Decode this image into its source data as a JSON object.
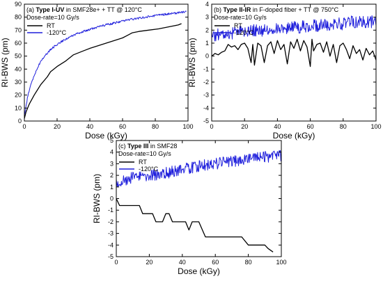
{
  "colors": {
    "rt": "#000000",
    "cold": "#1f1fdc",
    "axis": "#000000"
  },
  "chart_data": [
    {
      "type": "line",
      "panel_tag": "(a)",
      "title_bold": "Type I-UV",
      "title_rest": " in SMF28e+ + TT @ 120°C",
      "subtitle": "Dose-rate=10 Gy/s",
      "xlabel": "Dose (kGy)",
      "ylabel": "RI-BWS (pm)",
      "xlim": [
        0,
        100
      ],
      "ylim": [
        0,
        90
      ],
      "xticks": [
        0,
        20,
        40,
        60,
        80,
        100
      ],
      "yticks": [
        0,
        10,
        20,
        30,
        40,
        50,
        60,
        70,
        80,
        90
      ],
      "legend_position": "upper-left",
      "series": [
        {
          "name": "RT",
          "color": "#000000",
          "noise": 0,
          "x": [
            0,
            1,
            3,
            6,
            10,
            14,
            16,
            17,
            20,
            25,
            30,
            36,
            40,
            45,
            50,
            55,
            60,
            63,
            66,
            70,
            76,
            82,
            86,
            90,
            94,
            96
          ],
          "y": [
            2,
            7,
            13,
            20,
            28,
            34,
            38,
            39,
            42,
            46,
            51,
            54,
            56,
            58,
            60,
            62,
            64,
            66,
            68,
            69,
            70,
            71,
            72,
            73,
            74,
            75
          ]
        },
        {
          "name": "-120°C",
          "color": "#1f1fdc",
          "noise": 0.6,
          "x": [
            0,
            1,
            2,
            4,
            6,
            8,
            10,
            13,
            16,
            20,
            25,
            30,
            35,
            40,
            45,
            50,
            55,
            60,
            65,
            70,
            75,
            80,
            85,
            90,
            95,
            99
          ],
          "y": [
            4,
            11,
            19,
            28,
            35,
            41,
            46,
            51,
            55,
            59,
            63,
            66,
            68.5,
            70.5,
            72.5,
            74,
            75.5,
            77,
            78.3,
            79.3,
            80.3,
            81.2,
            82,
            82.8,
            83.5,
            84
          ]
        }
      ]
    },
    {
      "type": "line",
      "panel_tag": "(b)",
      "title_bold": "Type II-IR",
      "title_rest": " in F-doped fiber + TT @ 750°C",
      "subtitle": "Dose-rate=10 Gy/s",
      "xlabel": "Dose (kGy)",
      "ylabel": "RI-BWS (pm)",
      "xlim": [
        0,
        100
      ],
      "ylim": [
        -5,
        4
      ],
      "xticks": [
        0,
        20,
        40,
        60,
        80,
        100
      ],
      "yticks": [
        -5,
        -4,
        -3,
        -2,
        -1,
        0,
        1,
        2,
        3,
        4
      ],
      "legend_position": "upper-left",
      "series": [
        {
          "name": "RT",
          "color": "#000000",
          "noise": 0,
          "x": [
            0,
            2,
            4,
            6,
            8,
            10,
            12,
            14,
            16,
            18,
            20,
            22,
            24,
            25,
            26,
            28,
            30,
            32,
            34,
            36,
            38,
            40,
            42,
            44,
            46,
            48,
            50,
            52,
            54,
            56,
            58,
            60,
            61,
            62,
            64,
            66,
            68,
            70,
            72,
            74,
            76,
            78,
            80,
            82,
            84,
            86,
            88,
            90,
            92,
            94,
            96,
            98,
            100
          ],
          "y": [
            0,
            0.2,
            0.1,
            0.3,
            0.4,
            0.9,
            0.7,
            0.8,
            0.5,
            0.9,
            1.0,
            0.6,
            -0.5,
            0.9,
            -0.7,
            1.0,
            0.8,
            -0.5,
            0.8,
            1.1,
            0.2,
            1.2,
            0.5,
            0.9,
            -0.6,
            1.1,
            0.6,
            1.3,
            0.4,
            1.2,
            0.7,
            -0.8,
            1.3,
            0.4,
            0.9,
            1.0,
            0.3,
            1.1,
            0.0,
            0.9,
            -0.5,
            0.8,
            1.0,
            0.5,
            -0.2,
            0.8,
            0.2,
            0.5,
            -0.3,
            0.6,
            0.1,
            0.4,
            -0.3
          ]
        },
        {
          "name": "-120°C",
          "color": "#1f1fdc",
          "noise": 0.55,
          "x": [
            0,
            10,
            20,
            30,
            40,
            50,
            60,
            70,
            80,
            90,
            100
          ],
          "y": [
            1.6,
            1.7,
            1.9,
            2.0,
            2.1,
            2.2,
            2.3,
            2.4,
            2.5,
            2.7,
            2.6
          ]
        }
      ]
    },
    {
      "type": "line",
      "panel_tag": "(c)",
      "title_bold": "Type III",
      "title_rest": " in SMF28",
      "subtitle": "Dose-rate=10 Gy/s",
      "xlabel": "Dose (kGy)",
      "ylabel": "RI-BWS (pm)",
      "xlim": [
        0,
        100
      ],
      "ylim": [
        -5,
        5
      ],
      "xticks": [
        0,
        20,
        40,
        60,
        80,
        100
      ],
      "yticks": [
        -5,
        -4,
        -3,
        -2,
        -1,
        0,
        1,
        2,
        3,
        4,
        5
      ],
      "legend_position": "upper-left",
      "series": [
        {
          "name": "RT",
          "color": "#000000",
          "noise": 0,
          "x": [
            0,
            2,
            4,
            6,
            10,
            14,
            16,
            18,
            20,
            22,
            24,
            26,
            28,
            30,
            32,
            34,
            36,
            38,
            40,
            42,
            44,
            46,
            48,
            50,
            54,
            56,
            60,
            64,
            68,
            72,
            76,
            80,
            84,
            88,
            90,
            92,
            95
          ],
          "y": [
            0,
            -0.6,
            -0.6,
            -0.6,
            -0.6,
            -0.6,
            -1.3,
            -1.3,
            -1.3,
            -1.3,
            -2.0,
            -2.0,
            -2.0,
            -1.3,
            -1.3,
            -2.0,
            -2.0,
            -2.0,
            -2.0,
            -2.0,
            -2.7,
            -2.0,
            -2.0,
            -2.0,
            -3.3,
            -3.3,
            -3.3,
            -3.3,
            -3.3,
            -3.3,
            -3.3,
            -4.0,
            -4.0,
            -4.0,
            -4.0,
            -4.3,
            -4.6
          ]
        },
        {
          "name": "-120°C",
          "color": "#1f1fdc",
          "noise": 0.5,
          "x": [
            0,
            5,
            10,
            20,
            30,
            40,
            50,
            60,
            70,
            80,
            90,
            100
          ],
          "y": [
            1.4,
            1.6,
            1.8,
            2.0,
            2.2,
            2.5,
            2.8,
            3.0,
            3.2,
            3.4,
            3.6,
            3.7
          ]
        }
      ]
    }
  ]
}
